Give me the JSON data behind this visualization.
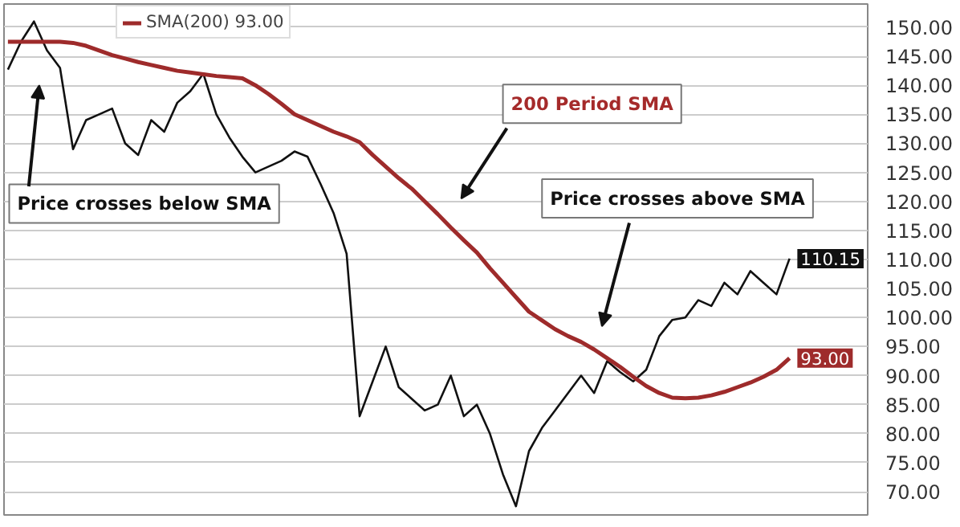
{
  "chart_data": {
    "type": "line",
    "categories": [
      null,
      null,
      null,
      null,
      null,
      null,
      null,
      null,
      null,
      null,
      null,
      null,
      null,
      null,
      null,
      null,
      null,
      null,
      null,
      null,
      null,
      null,
      null,
      null,
      null,
      null,
      null,
      null,
      null,
      null,
      null,
      null,
      null,
      null,
      null,
      null,
      null,
      null,
      null,
      null,
      null,
      null,
      null,
      null,
      null,
      null,
      null,
      null,
      null,
      null,
      null,
      null,
      null,
      null,
      null,
      null,
      null,
      null,
      null,
      null,
      null
    ],
    "series": [
      {
        "color": "#111111",
        "values": [
          142.7,
          147.5,
          151,
          146,
          143,
          129,
          134,
          135,
          136,
          130,
          128,
          134,
          132,
          137,
          139,
          142,
          135,
          131,
          127.7,
          125,
          126,
          127,
          128.6,
          127.7,
          123,
          118,
          111,
          83,
          89,
          95,
          88,
          86,
          84,
          85,
          90,
          83,
          85,
          80,
          73,
          67.5,
          77,
          81,
          84,
          87,
          90,
          87,
          92.5,
          90.6,
          89,
          91,
          96.8,
          99.6,
          100,
          103,
          102,
          106,
          104,
          108,
          106,
          104,
          110.15
        ]
      },
      {
        "name": "SMA(200) 93.00",
        "color": "#9e2b2b",
        "values": [
          147.5,
          147.5,
          147.5,
          147.5,
          147.5,
          147.3,
          146.8,
          146,
          145.2,
          144.6,
          144,
          143.5,
          143,
          142.5,
          142.2,
          141.9,
          141.6,
          141.4,
          141.2,
          140,
          138.5,
          136.8,
          135,
          134,
          133,
          132,
          131.2,
          130.2,
          128,
          126,
          124,
          122.2,
          120,
          117.8,
          115.5,
          113.3,
          111.2,
          108.5,
          106,
          103.5,
          101,
          99.5,
          98,
          96.8,
          95.8,
          94.5,
          93,
          91.5,
          89.8,
          88.2,
          87,
          86.2,
          86.1,
          86.2,
          86.6,
          87.2,
          88,
          88.8,
          89.8,
          91,
          93
        ]
      }
    ],
    "ylim": [
      66,
      154
    ],
    "yticks": [
      {
        "value": 70,
        "label": "70.00"
      },
      {
        "value": 75,
        "label": "75.00"
      },
      {
        "value": 80,
        "label": "80.00"
      },
      {
        "value": 85,
        "label": "85.00"
      },
      {
        "value": 90,
        "label": "90.00"
      },
      {
        "value": 95,
        "label": "95.00"
      },
      {
        "value": 100,
        "label": "100.00"
      },
      {
        "value": 105,
        "label": "105.00"
      },
      {
        "value": 110,
        "label": "110.00"
      },
      {
        "value": 115,
        "label": "115.00"
      },
      {
        "value": 120,
        "label": "120.00"
      },
      {
        "value": 125,
        "label": "125.00"
      },
      {
        "value": 130,
        "label": "130.00"
      },
      {
        "value": 135,
        "label": "135.00"
      },
      {
        "value": 140,
        "label": "140.00"
      },
      {
        "value": 145,
        "label": "145.00"
      },
      {
        "value": 150,
        "label": "150.00"
      }
    ],
    "tick_labels": "y",
    "grid": "y",
    "legend": "top left",
    "marker": "none",
    "line_style": "solid",
    "annotations": [
      "Price crosses below SMA",
      "200 Period SMA",
      "Price crosses above SMA",
      "110.15",
      "93.00"
    ]
  }
}
